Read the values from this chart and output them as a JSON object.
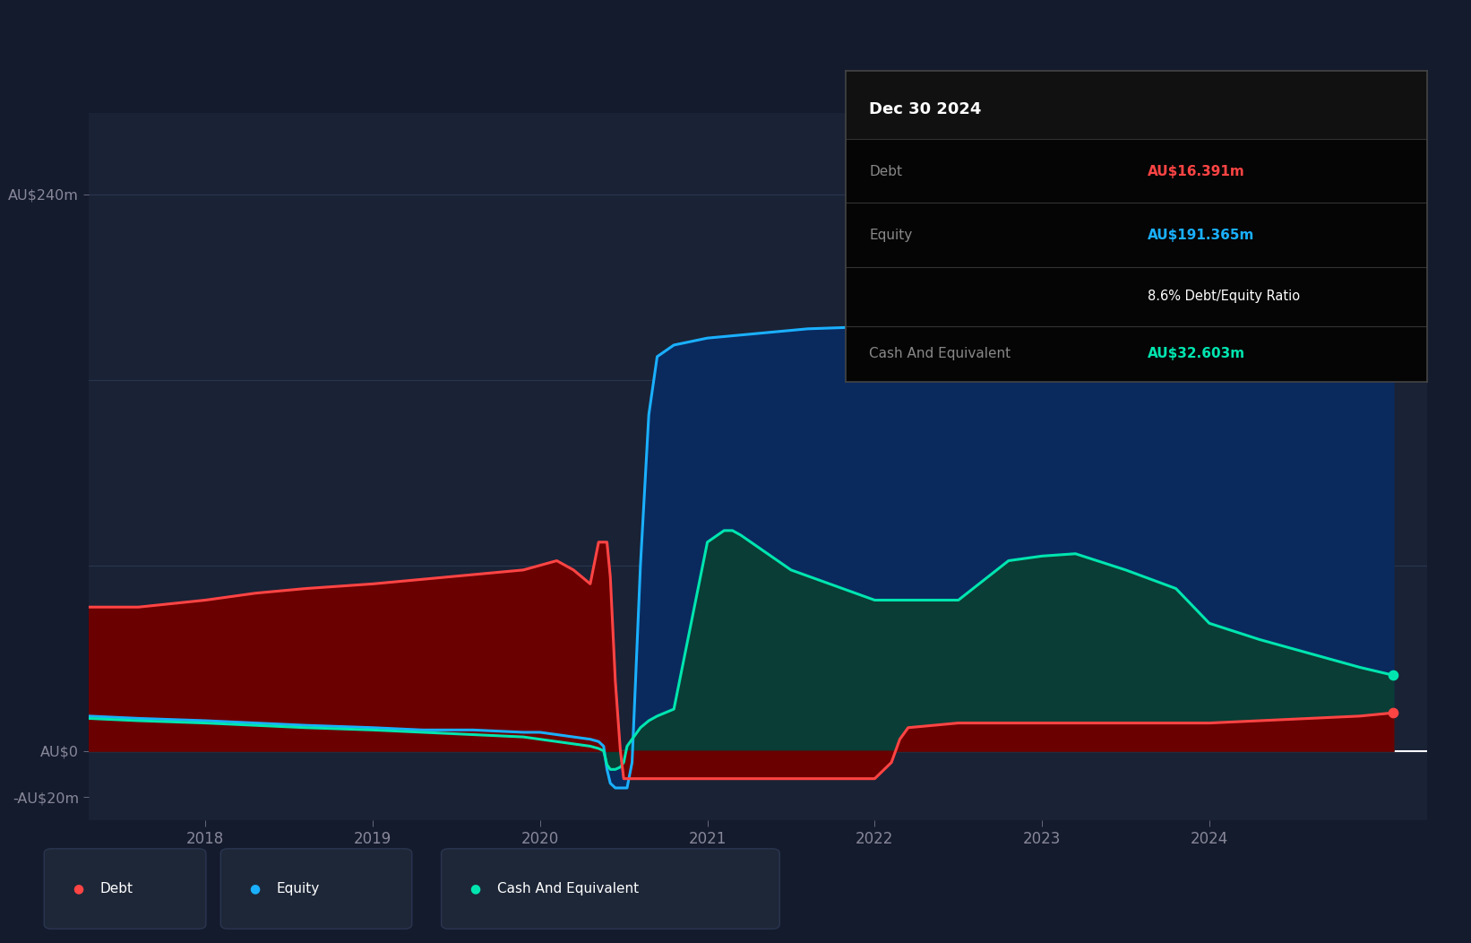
{
  "background_color": "#141B2D",
  "plot_bg_color": "#1a2235",
  "grid_color": "#2a3550",
  "tick_color": "#888899",
  "ylabel_ticks": [
    "AU$240m",
    "AU$0",
    "-AU$20m"
  ],
  "ytick_values": [
    240,
    0,
    -20
  ],
  "ylim": [
    -30,
    275
  ],
  "xlim_start": 2017.3,
  "xlim_end": 2025.3,
  "debt_color": "#ff4444",
  "debt_fill_color": "#6b0000",
  "equity_color": "#1ab0ff",
  "equity_fill_color": "#0a2a5e",
  "cash_color": "#00e5b0",
  "cash_fill_color": "#0a3d35",
  "debt_x": [
    2017.3,
    2017.6,
    2018.0,
    2018.3,
    2018.6,
    2019.0,
    2019.3,
    2019.6,
    2019.9,
    2020.0,
    2020.1,
    2020.2,
    2020.25,
    2020.3,
    2020.35,
    2020.4,
    2020.42,
    2020.45,
    2020.48,
    2020.5,
    2020.52,
    2020.55,
    2020.6,
    2020.65,
    2020.7,
    2020.8,
    2021.0,
    2021.1,
    2021.5,
    2022.0,
    2022.1,
    2022.15,
    2022.2,
    2022.5,
    2023.0,
    2023.5,
    2024.0,
    2024.3,
    2024.6,
    2024.9,
    2025.1
  ],
  "debt_y": [
    62,
    62,
    65,
    68,
    70,
    72,
    74,
    76,
    78,
    80,
    82,
    78,
    75,
    72,
    90,
    90,
    75,
    30,
    0,
    -12,
    -12,
    -12,
    -12,
    -12,
    -12,
    -12,
    -12,
    -12,
    -12,
    -12,
    -5,
    5,
    10,
    12,
    12,
    12,
    12,
    13,
    14,
    15,
    16.4
  ],
  "equity_x": [
    2017.3,
    2017.6,
    2018.0,
    2018.3,
    2018.6,
    2019.0,
    2019.3,
    2019.6,
    2019.9,
    2020.0,
    2020.1,
    2020.2,
    2020.3,
    2020.35,
    2020.38,
    2020.4,
    2020.42,
    2020.45,
    2020.48,
    2020.5,
    2020.52,
    2020.55,
    2020.6,
    2020.65,
    2020.7,
    2020.8,
    2021.0,
    2021.3,
    2021.6,
    2022.0,
    2022.5,
    2022.8,
    2023.0,
    2023.2,
    2023.5,
    2023.8,
    2024.0,
    2024.3,
    2024.6,
    2024.9,
    2025.1
  ],
  "equity_y": [
    15,
    14,
    13,
    12,
    11,
    10,
    9,
    9,
    8,
    8,
    7,
    6,
    5,
    4,
    2,
    -8,
    -14,
    -16,
    -16,
    -16,
    -16,
    -5,
    80,
    145,
    170,
    175,
    178,
    180,
    182,
    183,
    192,
    238,
    240,
    235,
    215,
    212,
    210,
    205,
    200,
    193,
    191.4
  ],
  "cash_x": [
    2017.3,
    2017.6,
    2018.0,
    2018.3,
    2018.6,
    2019.0,
    2019.3,
    2019.6,
    2019.9,
    2020.0,
    2020.1,
    2020.2,
    2020.3,
    2020.35,
    2020.38,
    2020.4,
    2020.42,
    2020.45,
    2020.48,
    2020.5,
    2020.52,
    2020.55,
    2020.58,
    2020.6,
    2020.65,
    2020.7,
    2020.8,
    2021.0,
    2021.1,
    2021.15,
    2021.2,
    2021.5,
    2022.0,
    2022.5,
    2022.8,
    2023.0,
    2023.2,
    2023.5,
    2023.8,
    2024.0,
    2024.3,
    2024.5,
    2024.7,
    2024.9,
    2025.1
  ],
  "cash_y": [
    14,
    13,
    12,
    11,
    10,
    9,
    8,
    7,
    6,
    5,
    4,
    3,
    2,
    1,
    0,
    -6,
    -8,
    -8,
    -7,
    -5,
    2,
    5,
    8,
    10,
    13,
    15,
    18,
    90,
    95,
    95,
    93,
    78,
    65,
    65,
    82,
    84,
    85,
    78,
    70,
    55,
    48,
    44,
    40,
    36,
    32.6
  ],
  "tooltip_title": "Dec 30 2024",
  "tooltip_debt_label": "Debt",
  "tooltip_debt_value": "AU$16.391m",
  "tooltip_debt_color": "#ff4444",
  "tooltip_equity_label": "Equity",
  "tooltip_equity_value": "AU$191.365m",
  "tooltip_equity_color": "#1ab0ff",
  "tooltip_ratio": "8.6% Debt/Equity Ratio",
  "tooltip_cash_label": "Cash And Equivalent",
  "tooltip_cash_value": "AU$32.603m",
  "tooltip_cash_color": "#00e5b0",
  "legend_items": [
    {
      "label": "Debt",
      "color": "#ff4444"
    },
    {
      "label": "Equity",
      "color": "#1ab0ff"
    },
    {
      "label": "Cash And Equivalent",
      "color": "#00e5b0"
    }
  ],
  "xtick_years": [
    2018,
    2019,
    2020,
    2021,
    2022,
    2023,
    2024
  ],
  "zero_line_color": "#ffffff",
  "horizontal_gridlines": [
    240,
    160,
    80
  ]
}
